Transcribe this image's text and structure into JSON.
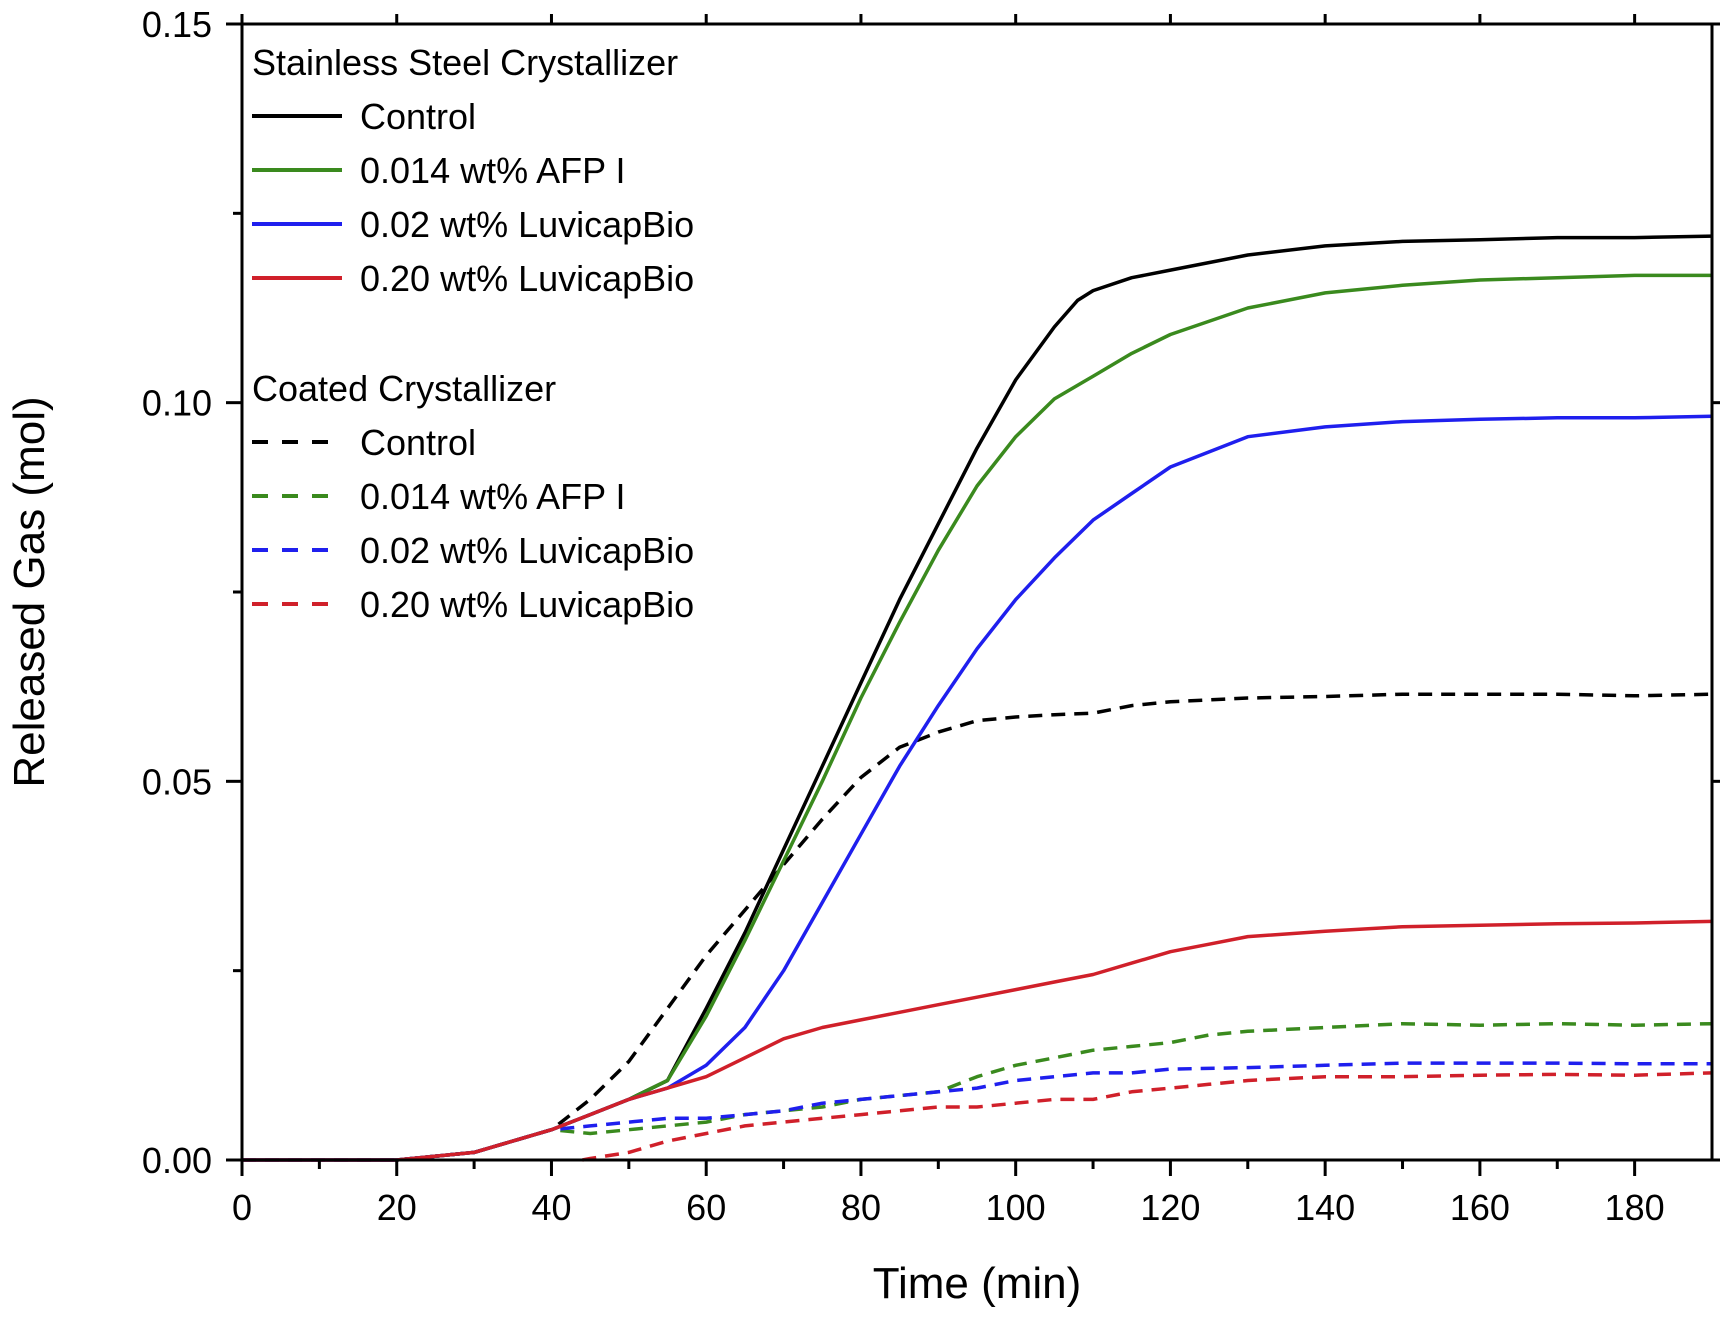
{
  "chart_data": {
    "type": "line",
    "title": "",
    "xlabel": "Time (min)",
    "ylabel": "Released Gas (mol)",
    "xlim": [
      0,
      190
    ],
    "ylim": [
      0,
      0.15
    ],
    "x_ticks": [
      "0",
      "20",
      "40",
      "60",
      "80",
      "100",
      "120",
      "140",
      "160",
      "180"
    ],
    "y_ticks": [
      "0.00",
      "0.05",
      "0.10",
      "0.15"
    ],
    "grid": false,
    "legend_placement": "top-left",
    "legend_groups": [
      {
        "title": "Stainless Steel Crystallizer",
        "series": [
          0,
          1,
          2,
          3
        ]
      },
      {
        "title": "Coated Crystallizer",
        "series": [
          4,
          5,
          6,
          7
        ]
      }
    ],
    "series": [
      {
        "name": "Control",
        "color": "#000000",
        "dash": "solid",
        "x": [
          0,
          10,
          20,
          30,
          40,
          45,
          50,
          55,
          60,
          65,
          70,
          75,
          80,
          85,
          90,
          95,
          100,
          105,
          108,
          110,
          115,
          120,
          130,
          140,
          150,
          160,
          170,
          180,
          190
        ],
        "y": [
          0.0,
          0.0,
          0.0,
          0.001,
          0.004,
          0.006,
          0.008,
          0.0105,
          0.02,
          0.03,
          0.041,
          0.052,
          0.063,
          0.074,
          0.084,
          0.094,
          0.103,
          0.11,
          0.1135,
          0.1148,
          0.1165,
          0.1175,
          0.1195,
          0.1207,
          0.1213,
          0.1215,
          0.1218,
          0.1218,
          0.122
        ]
      },
      {
        "name": "0.014 wt% AFP I",
        "color": "#3a8a1e",
        "dash": "solid",
        "x": [
          0,
          10,
          20,
          30,
          40,
          45,
          50,
          55,
          60,
          65,
          70,
          75,
          80,
          85,
          90,
          95,
          100,
          105,
          110,
          115,
          120,
          130,
          140,
          150,
          160,
          170,
          180,
          190
        ],
        "y": [
          0.0,
          0.0,
          0.0,
          0.001,
          0.004,
          0.006,
          0.008,
          0.0105,
          0.019,
          0.029,
          0.0395,
          0.05,
          0.061,
          0.071,
          0.0805,
          0.089,
          0.0955,
          0.1005,
          0.1035,
          0.1065,
          0.109,
          0.1125,
          0.1145,
          0.1155,
          0.1162,
          0.1165,
          0.1168,
          0.1168
        ]
      },
      {
        "name": "0.02 wt% LuvicapBio",
        "color": "#1f1fee",
        "dash": "solid",
        "x": [
          0,
          10,
          20,
          30,
          40,
          45,
          50,
          55,
          60,
          65,
          70,
          75,
          80,
          85,
          90,
          95,
          100,
          105,
          110,
          115,
          120,
          125,
          130,
          140,
          150,
          160,
          170,
          180,
          190
        ],
        "y": [
          0.0,
          0.0,
          0.0,
          0.001,
          0.004,
          0.006,
          0.008,
          0.0095,
          0.0125,
          0.0175,
          0.025,
          0.034,
          0.043,
          0.052,
          0.06,
          0.0675,
          0.074,
          0.0795,
          0.0845,
          0.088,
          0.0915,
          0.0935,
          0.0955,
          0.0968,
          0.0975,
          0.0978,
          0.098,
          0.098,
          0.0982
        ]
      },
      {
        "name": "0.20 wt% LuvicapBio",
        "color": "#d0202a",
        "dash": "solid",
        "x": [
          0,
          10,
          20,
          30,
          40,
          45,
          50,
          55,
          60,
          65,
          70,
          75,
          80,
          85,
          90,
          95,
          100,
          105,
          110,
          115,
          120,
          125,
          130,
          140,
          150,
          160,
          170,
          180,
          190
        ],
        "y": [
          0.0,
          0.0,
          0.0,
          0.001,
          0.004,
          0.006,
          0.008,
          0.0095,
          0.011,
          0.0135,
          0.016,
          0.0175,
          0.0185,
          0.0195,
          0.0205,
          0.0215,
          0.0225,
          0.0235,
          0.0245,
          0.026,
          0.0275,
          0.0285,
          0.0295,
          0.0302,
          0.0308,
          0.031,
          0.0312,
          0.0313,
          0.0315
        ]
      },
      {
        "name": "Control",
        "color": "#000000",
        "dash": "dashed",
        "x": [
          0,
          10,
          20,
          30,
          40,
          45,
          50,
          55,
          60,
          65,
          70,
          75,
          80,
          85,
          90,
          95,
          100,
          105,
          110,
          115,
          120,
          130,
          140,
          150,
          160,
          170,
          180,
          190
        ],
        "y": [
          0.0,
          0.0,
          0.0,
          0.001,
          0.004,
          0.008,
          0.013,
          0.02,
          0.027,
          0.033,
          0.039,
          0.045,
          0.0505,
          0.0545,
          0.0565,
          0.058,
          0.0585,
          0.0588,
          0.059,
          0.06,
          0.0605,
          0.061,
          0.0612,
          0.0615,
          0.0615,
          0.0615,
          0.0613,
          0.0615
        ]
      },
      {
        "name": "0.014 wt% AFP I",
        "color": "#3a8a1e",
        "dash": "dashed",
        "x": [
          0,
          10,
          20,
          30,
          40,
          45,
          50,
          55,
          60,
          65,
          70,
          75,
          80,
          85,
          90,
          95,
          100,
          105,
          110,
          115,
          120,
          125,
          130,
          140,
          150,
          160,
          170,
          180,
          190
        ],
        "y": [
          0.0,
          0.0,
          0.0,
          0.001,
          0.004,
          0.0035,
          0.004,
          0.0045,
          0.005,
          0.006,
          0.0065,
          0.007,
          0.008,
          0.0085,
          0.009,
          0.011,
          0.0125,
          0.0135,
          0.0145,
          0.015,
          0.0155,
          0.0165,
          0.017,
          0.0175,
          0.018,
          0.0178,
          0.018,
          0.0178,
          0.018
        ]
      },
      {
        "name": "0.02 wt% LuvicapBio",
        "color": "#1f1fee",
        "dash": "dashed",
        "x": [
          0,
          10,
          20,
          30,
          40,
          45,
          50,
          55,
          60,
          65,
          70,
          75,
          80,
          85,
          90,
          95,
          100,
          105,
          110,
          115,
          120,
          130,
          140,
          150,
          160,
          170,
          180,
          190
        ],
        "y": [
          0.0,
          0.0,
          0.0,
          0.001,
          0.004,
          0.0045,
          0.005,
          0.0055,
          0.0055,
          0.006,
          0.0065,
          0.0075,
          0.008,
          0.0085,
          0.009,
          0.0095,
          0.0105,
          0.011,
          0.0115,
          0.0115,
          0.012,
          0.0122,
          0.0125,
          0.0128,
          0.0128,
          0.0128,
          0.0127,
          0.0127
        ]
      },
      {
        "name": "0.20 wt% LuvicapBio",
        "color": "#d0202a",
        "dash": "dashed",
        "x": [
          44,
          45,
          50,
          55,
          60,
          65,
          70,
          75,
          80,
          85,
          90,
          95,
          100,
          105,
          110,
          115,
          120,
          125,
          130,
          140,
          150,
          160,
          170,
          180,
          190
        ],
        "y": [
          0.0,
          0.0002,
          0.001,
          0.0025,
          0.0035,
          0.0045,
          0.005,
          0.0055,
          0.006,
          0.0065,
          0.007,
          0.007,
          0.0075,
          0.008,
          0.008,
          0.009,
          0.0095,
          0.01,
          0.0105,
          0.011,
          0.011,
          0.0112,
          0.0113,
          0.0112,
          0.0115
        ]
      }
    ]
  }
}
